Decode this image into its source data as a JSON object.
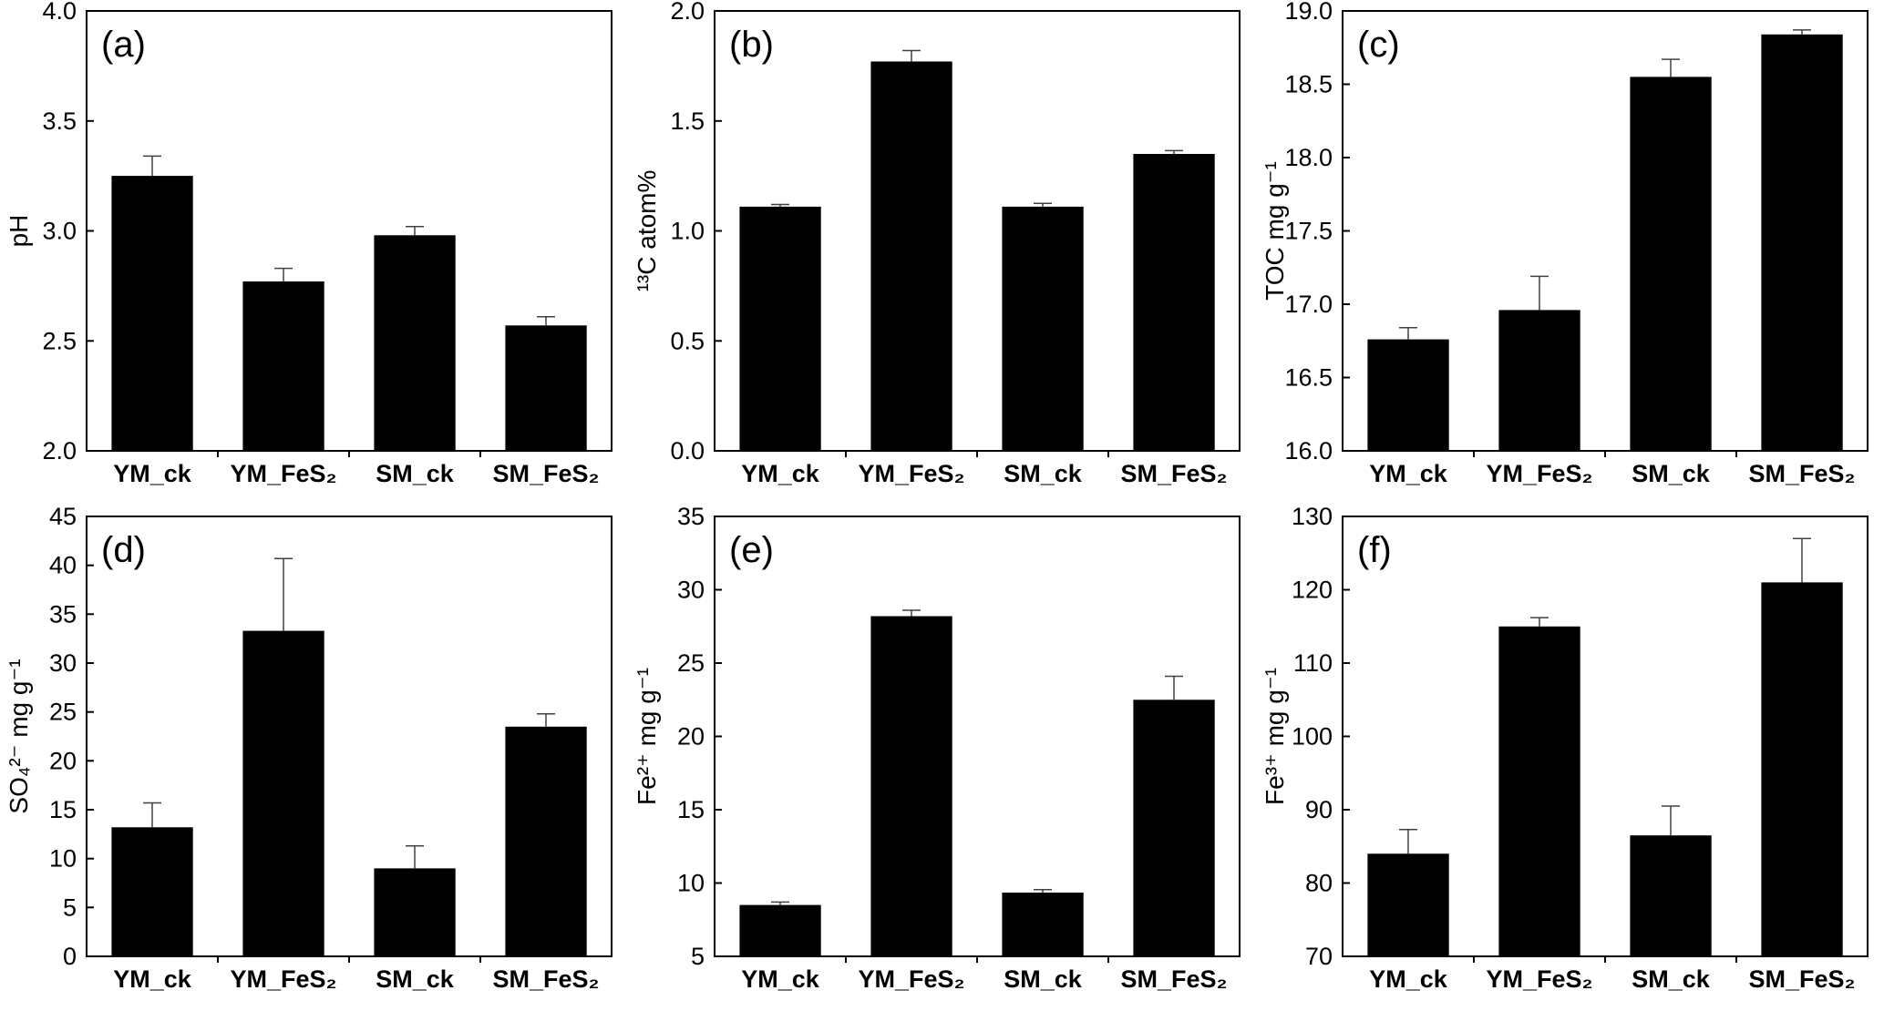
{
  "figure": {
    "background": "#ffffff",
    "bar_color": "#000000",
    "axis_color": "#000000",
    "error_color": "#404040",
    "text_color": "#000000",
    "grid": false,
    "legend": false
  },
  "chart_data": [
    {
      "type": "bar",
      "panel_label": "(a)",
      "title": "",
      "xlabel": "",
      "ylabel": "pH",
      "ylim": [
        2.0,
        4.0
      ],
      "ytick_step": 0.5,
      "ytick_decimals": 1,
      "categories": [
        "YM_ck",
        "YM_FeS₂",
        "SM_ck",
        "SM_FeS₂"
      ],
      "values": [
        3.25,
        2.77,
        2.98,
        2.57
      ],
      "errors": [
        0.09,
        0.06,
        0.04,
        0.04
      ]
    },
    {
      "type": "bar",
      "panel_label": "(b)",
      "title": "",
      "xlabel": "",
      "ylabel": "¹³C atom%",
      "ylim": [
        0.0,
        2.0
      ],
      "ytick_step": 0.5,
      "ytick_decimals": 1,
      "categories": [
        "YM_ck",
        "YM_FeS₂",
        "SM_ck",
        "SM_FeS₂"
      ],
      "values": [
        1.11,
        1.77,
        1.11,
        1.35
      ],
      "errors": [
        0.01,
        0.05,
        0.015,
        0.015
      ]
    },
    {
      "type": "bar",
      "panel_label": "(c)",
      "title": "",
      "xlabel": "",
      "ylabel": "TOC mg g⁻¹",
      "ylim": [
        16.0,
        19.0
      ],
      "ytick_step": 0.5,
      "ytick_decimals": 1,
      "categories": [
        "YM_ck",
        "YM_FeS₂",
        "SM_ck",
        "SM_FeS₂"
      ],
      "values": [
        16.76,
        16.96,
        18.55,
        18.84
      ],
      "errors": [
        0.08,
        0.23,
        0.12,
        0.03
      ]
    },
    {
      "type": "bar",
      "panel_label": "(d)",
      "title": "",
      "xlabel": "",
      "ylabel": "SO₄²⁻ mg g⁻¹",
      "ylim": [
        0,
        45
      ],
      "ytick_step": 5,
      "ytick_decimals": 0,
      "categories": [
        "YM_ck",
        "YM_FeS₂",
        "SM_ck",
        "SM_FeS₂"
      ],
      "values": [
        13.2,
        33.3,
        9.0,
        23.5
      ],
      "errors": [
        2.5,
        7.4,
        2.3,
        1.3
      ]
    },
    {
      "type": "bar",
      "panel_label": "(e)",
      "title": "",
      "xlabel": "",
      "ylabel": "Fe²⁺ mg g⁻¹",
      "ylim": [
        5,
        35
      ],
      "ytick_step": 5,
      "ytick_decimals": 0,
      "categories": [
        "YM_ck",
        "YM_FeS₂",
        "SM_ck",
        "SM_FeS₂"
      ],
      "values": [
        8.5,
        28.2,
        9.35,
        22.5
      ],
      "errors": [
        0.2,
        0.4,
        0.2,
        1.6
      ]
    },
    {
      "type": "bar",
      "panel_label": "(f)",
      "title": "",
      "xlabel": "",
      "ylabel": "Fe³⁺ mg g⁻¹",
      "ylim": [
        70,
        130
      ],
      "ytick_step": 10,
      "ytick_decimals": 0,
      "categories": [
        "YM_ck",
        "YM_FeS₂",
        "SM_ck",
        "SM_FeS₂"
      ],
      "values": [
        84,
        115,
        86.5,
        121
      ],
      "errors": [
        3.3,
        1.2,
        4.0,
        6.0
      ]
    }
  ]
}
